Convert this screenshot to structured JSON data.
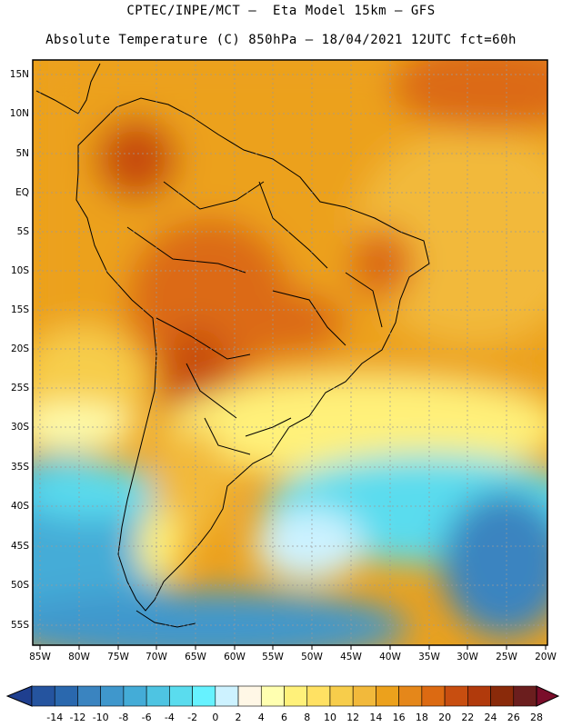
{
  "header": {
    "line1": "CPTEC/INPE/MCT –  Eta Model 15km – GFS",
    "line2": "Absolute Temperature (C) 850hPa – 18/04/2021 12UTC fct=60h"
  },
  "map": {
    "lat_labels": [
      "15N",
      "10N",
      "5N",
      "EQ",
      "5S",
      "10S",
      "15S",
      "20S",
      "25S",
      "30S",
      "35S",
      "40S",
      "45S",
      "50S",
      "55S"
    ],
    "lon_labels": [
      "85W",
      "80W",
      "75W",
      "70W",
      "65W",
      "60W",
      "55W",
      "50W",
      "45W",
      "40W",
      "35W",
      "30W",
      "25W",
      "20W"
    ]
  },
  "colorbar": {
    "labels": [
      "-14",
      "-12",
      "-10",
      "-8",
      "-6",
      "-4",
      "-2",
      "0",
      "2",
      "4",
      "6",
      "8",
      "10",
      "12",
      "14",
      "16",
      "18",
      "20",
      "22",
      "24",
      "26",
      "28"
    ],
    "colors": [
      "#1f3f8f",
      "#25549f",
      "#2a68ae",
      "#3a84c0",
      "#3f97cc",
      "#44acd7",
      "#4ec4e2",
      "#5adcee",
      "#66f2ff",
      "#cdf2ff",
      "#fff7e6",
      "#ffffb0",
      "#fff17a",
      "#ffe163",
      "#f7cd4b",
      "#f2b93b",
      "#eca11c",
      "#e5871a",
      "#dc6a12",
      "#c84e10",
      "#b13a0c",
      "#8a2a0a",
      "#6b1e1e",
      "#7a0d2a"
    ]
  }
}
